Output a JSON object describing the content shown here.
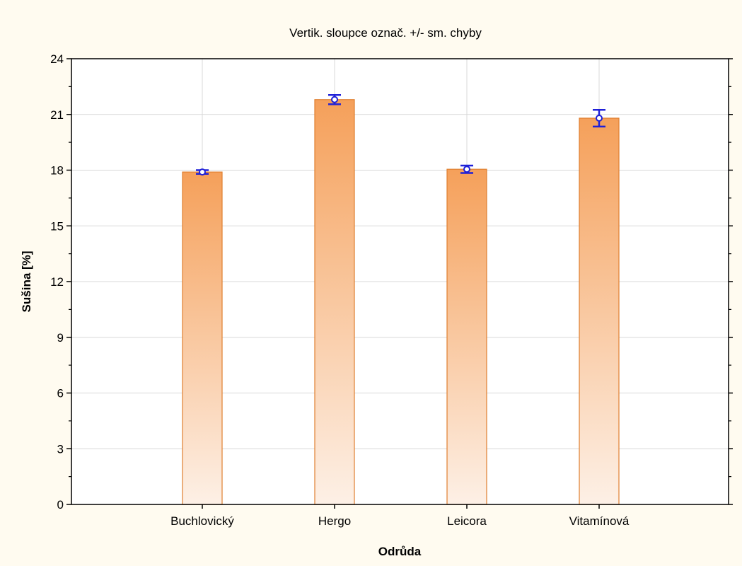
{
  "chart_data": {
    "type": "bar",
    "title": "Vertik. sloupce označ. +/- sm. chyby",
    "xlabel": "Odrůda",
    "ylabel": "Sušina [%]",
    "categories": [
      "Buchlovický",
      "Hergo",
      "Leicora",
      "Vitamínová"
    ],
    "values": [
      17.9,
      21.8,
      18.05,
      20.8
    ],
    "errors": [
      0.1,
      0.25,
      0.2,
      0.45
    ],
    "ylim": [
      0,
      24
    ],
    "yticks": [
      0,
      3,
      6,
      9,
      12,
      15,
      18,
      21,
      24
    ],
    "grid": true,
    "colors": {
      "bar_top": "#f5a05a",
      "bar_bottom": "#fdf0e6",
      "bar_edge": "#e07f30",
      "error": "#1f20d8",
      "background": "#fffbf0",
      "grid": "#d8d8d8"
    }
  }
}
